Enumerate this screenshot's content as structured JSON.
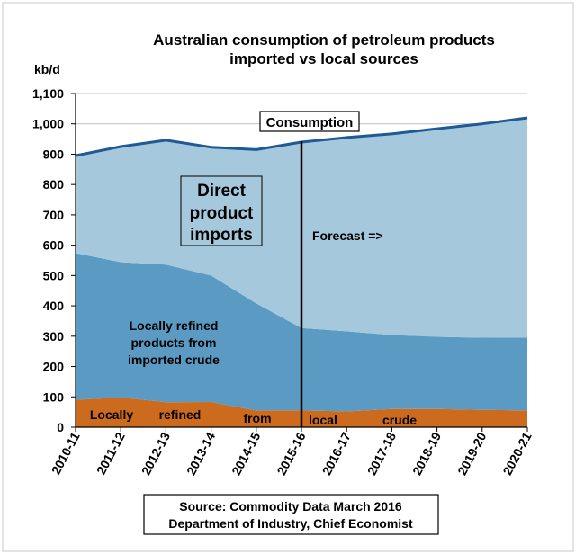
{
  "chart_data": {
    "type": "area",
    "title": "Australian consumption of petroleum products",
    "subtitle": "imported vs local sources",
    "ylabel": "kb/d",
    "ylim": [
      0,
      1100
    ],
    "yticks": [
      0,
      100,
      200,
      300,
      400,
      500,
      600,
      700,
      800,
      900,
      1000,
      1100
    ],
    "ytick_labels": [
      "0",
      "100",
      "200",
      "300",
      "400",
      "500",
      "600",
      "700",
      "800",
      "900",
      "1,000",
      "1,100"
    ],
    "categories": [
      "2010-11",
      "2011-12",
      "2012-13",
      "2013-14",
      "2014-15",
      "2015-16",
      "2016-17",
      "2017-18",
      "2018-19",
      "2019-20",
      "2020-21"
    ],
    "stacked": true,
    "grid": "horizontal",
    "series": [
      {
        "name": "Locally refined from local crude",
        "color": "#cc6a1e",
        "values": [
          90,
          98,
          82,
          83,
          55,
          55,
          52,
          60,
          60,
          57,
          55
        ]
      },
      {
        "name": "Locally refined products from imported crude",
        "color": "#5b9bc3",
        "values": [
          484,
          446,
          454,
          417,
          353,
          272,
          264,
          244,
          238,
          238,
          241
        ]
      },
      {
        "name": "Direct product imports",
        "color": "#a6c8dc",
        "values": [
          321,
          381,
          410,
          423,
          507,
          613,
          639,
          663,
          686,
          705,
          724
        ]
      }
    ],
    "consumption_line": {
      "label": "Consumption",
      "color": "#1f5a96",
      "values": [
        895,
        925,
        946,
        923,
        915,
        940,
        955,
        967,
        984,
        1000,
        1020
      ]
    },
    "forecast_marker": {
      "at": "2015-16",
      "label": "Forecast =>"
    },
    "annotations": {
      "direct_imports": [
        "Direct",
        "product",
        "imports"
      ],
      "imported_crude": [
        "Locally refined",
        "products from",
        "imported crude"
      ],
      "local_crude_words": [
        "Locally",
        "refined",
        "from",
        "local",
        "crude"
      ]
    },
    "source_lines": [
      "Source: Commodity Data March 2016",
      "Department of Industry,  Chief Economist"
    ]
  }
}
